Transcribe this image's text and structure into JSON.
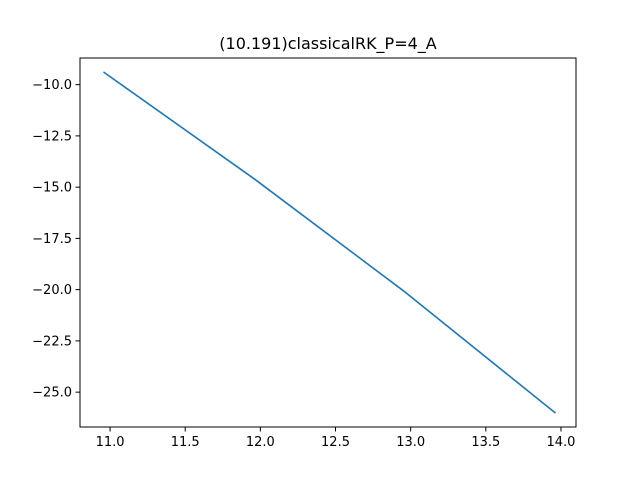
{
  "chart_data": {
    "type": "line",
    "title": "(10.191)classicalRK_P=4_A",
    "xlabel": "",
    "ylabel": "",
    "xlim": [
      10.8,
      14.1
    ],
    "ylim": [
      -26.7,
      -8.7
    ],
    "xticks": [
      11.0,
      11.5,
      12.0,
      12.5,
      13.0,
      13.5,
      14.0
    ],
    "xtick_labels": [
      "11.0",
      "11.5",
      "12.0",
      "12.5",
      "13.0",
      "13.5",
      "14.0"
    ],
    "yticks": [
      -10.0,
      -12.5,
      -15.0,
      -17.5,
      -20.0,
      -22.5,
      -25.0
    ],
    "ytick_labels": [
      "−10.0",
      "−12.5",
      "−15.0",
      "−17.5",
      "−20.0",
      "−22.5",
      "−25.0"
    ],
    "grid": false,
    "legend": "none",
    "series": [
      {
        "color": "#1f77b4",
        "x": [
          10.96,
          11.96,
          12.96,
          13.96
        ],
        "y": [
          -9.4,
          -14.6,
          -20.1,
          -26.0
        ]
      }
    ]
  }
}
